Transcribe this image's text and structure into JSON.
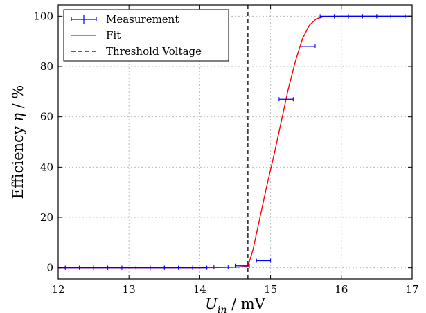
{
  "chart_data": {
    "type": "line",
    "title": "",
    "xlabel_main": "U",
    "xlabel_sub": "in",
    "xlabel_unit": " / mV",
    "ylabel_text": "Efficiency ",
    "ylabel_symbol": "η",
    "ylabel_unit": " / %",
    "xlim": [
      12,
      17
    ],
    "ylim": [
      -4.5,
      104.5
    ],
    "xticks": [
      12,
      13,
      14,
      15,
      16,
      17
    ],
    "yticks": [
      0,
      20,
      40,
      60,
      80,
      100
    ],
    "grid": true,
    "legend_position": "top-left",
    "colors": {
      "measurement": "#0000ff",
      "fit": "#ff0000",
      "threshold": "#000000",
      "grid": "#bbbbbb"
    },
    "series": [
      {
        "name": "Measurement",
        "style": "errorbar",
        "points": [
          {
            "x": 12.0,
            "y": 0.0,
            "xerr": 0.1
          },
          {
            "x": 12.2,
            "y": 0.0,
            "xerr": 0.1
          },
          {
            "x": 12.4,
            "y": 0.0,
            "xerr": 0.1
          },
          {
            "x": 12.6,
            "y": 0.0,
            "xerr": 0.1
          },
          {
            "x": 12.8,
            "y": 0.0,
            "xerr": 0.1
          },
          {
            "x": 13.0,
            "y": 0.0,
            "xerr": 0.1
          },
          {
            "x": 13.2,
            "y": 0.0,
            "xerr": 0.1
          },
          {
            "x": 13.4,
            "y": 0.0,
            "xerr": 0.1
          },
          {
            "x": 13.6,
            "y": 0.0,
            "xerr": 0.1
          },
          {
            "x": 13.8,
            "y": 0.0,
            "xerr": 0.1
          },
          {
            "x": 14.0,
            "y": 0.0,
            "xerr": 0.1
          },
          {
            "x": 14.3,
            "y": 0.3,
            "xerr": 0.1
          },
          {
            "x": 14.6,
            "y": 0.8,
            "xerr": 0.1
          },
          {
            "x": 14.9,
            "y": 2.8,
            "xerr": 0.1
          },
          {
            "x": 15.22,
            "y": 67.0,
            "xerr": 0.1
          },
          {
            "x": 15.53,
            "y": 88.0,
            "xerr": 0.1
          },
          {
            "x": 15.8,
            "y": 100.0,
            "xerr": 0.1
          },
          {
            "x": 16.0,
            "y": 100.0,
            "xerr": 0.1
          },
          {
            "x": 16.2,
            "y": 100.0,
            "xerr": 0.1
          },
          {
            "x": 16.4,
            "y": 100.0,
            "xerr": 0.1
          },
          {
            "x": 16.6,
            "y": 100.0,
            "xerr": 0.1
          },
          {
            "x": 16.8,
            "y": 100.0,
            "xerr": 0.1
          },
          {
            "x": 17.0,
            "y": 100.0,
            "xerr": 0.1
          }
        ]
      },
      {
        "name": "Fit",
        "style": "line",
        "x": [
          12.0,
          13.0,
          14.0,
          14.5,
          14.68,
          14.75,
          14.85,
          14.95,
          15.05,
          15.15,
          15.25,
          15.35,
          15.45,
          15.55,
          15.65,
          15.75,
          16.0,
          17.0
        ],
        "y": [
          0.0,
          0.0,
          0.0,
          0.2,
          0.5,
          7.0,
          20.0,
          33.0,
          45.0,
          58.0,
          71.0,
          82.0,
          91.0,
          96.5,
          99.0,
          99.8,
          100.0,
          100.0
        ]
      },
      {
        "name": "Threshold Voltage",
        "style": "vline",
        "x": 14.68
      }
    ]
  }
}
